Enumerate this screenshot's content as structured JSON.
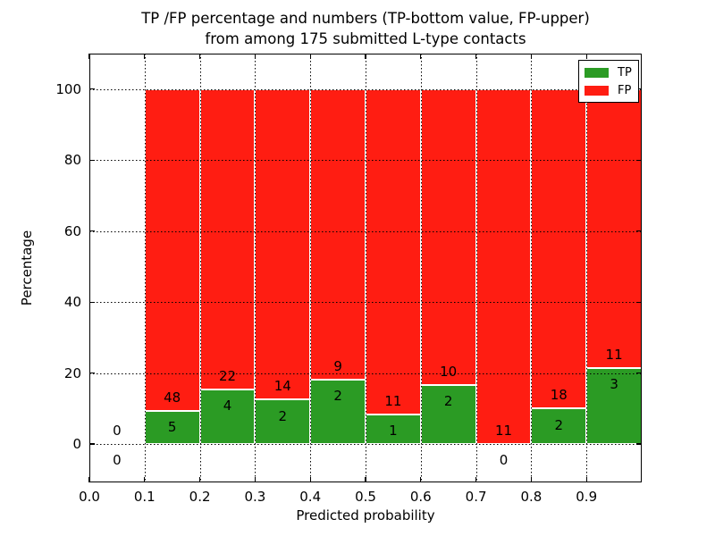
{
  "figure": {
    "title_line1": "TP /FP percentage and numbers (TP-bottom value, FP-upper)",
    "title_line2": "from among 175 submitted L-type contacts",
    "background": "#ffffff"
  },
  "colors": {
    "tp_green": "#2b9b24",
    "fp_red": "#ff1d12",
    "axis_text": "#000000",
    "bar_edge": "#ffffff",
    "frame": "#000000"
  },
  "chart_data": {
    "type": "bar",
    "stacked": true,
    "title": "TP /FP percentage and numbers (TP-bottom value, FP-upper) from among 175 submitted L-type contacts",
    "xlabel": "Predicted probability",
    "ylabel": "Percentage",
    "xlim": [
      0.0,
      1.0
    ],
    "ylim": [
      -10.8,
      110.0
    ],
    "grid": "dotted",
    "total_contacts": 175,
    "x_ticks": [
      "0.0",
      "0.1",
      "0.2",
      "0.3",
      "0.4",
      "0.5",
      "0.6",
      "0.7",
      "0.8",
      "0.9"
    ],
    "x_tick_values": [
      0.0,
      0.1,
      0.2,
      0.3,
      0.4,
      0.5,
      0.6,
      0.7,
      0.8,
      0.9
    ],
    "y_ticks": [
      "0",
      "20",
      "40",
      "60",
      "80",
      "100"
    ],
    "y_tick_values": [
      0,
      20,
      40,
      60,
      80,
      100
    ],
    "legend": {
      "position": "upper right",
      "entries": [
        {
          "label": "TP",
          "color": "#2b9b24"
        },
        {
          "label": "FP",
          "color": "#ff1d12"
        }
      ]
    },
    "series": [
      {
        "name": "TP",
        "color": "#2b9b24",
        "counts": [
          0,
          5,
          4,
          2,
          2,
          1,
          2,
          0,
          2,
          3
        ]
      },
      {
        "name": "FP",
        "color": "#ff1d12",
        "counts": [
          0,
          48,
          22,
          14,
          9,
          11,
          10,
          11,
          18,
          11
        ]
      }
    ],
    "bins": [
      {
        "range": [
          0.0,
          0.1
        ],
        "tp_count": 0,
        "fp_count": 0,
        "tp_pct": 0.0,
        "fp_pct": 0.0,
        "draw_bar": false
      },
      {
        "range": [
          0.1,
          0.2
        ],
        "tp_count": 5,
        "fp_count": 48,
        "tp_pct": 9.43,
        "fp_pct": 90.57,
        "draw_bar": true
      },
      {
        "range": [
          0.2,
          0.3
        ],
        "tp_count": 4,
        "fp_count": 22,
        "tp_pct": 15.38,
        "fp_pct": 84.62,
        "draw_bar": true
      },
      {
        "range": [
          0.3,
          0.4
        ],
        "tp_count": 2,
        "fp_count": 14,
        "tp_pct": 12.5,
        "fp_pct": 87.5,
        "draw_bar": true
      },
      {
        "range": [
          0.4,
          0.5
        ],
        "tp_count": 2,
        "fp_count": 9,
        "tp_pct": 18.18,
        "fp_pct": 81.82,
        "draw_bar": true
      },
      {
        "range": [
          0.5,
          0.6
        ],
        "tp_count": 1,
        "fp_count": 11,
        "tp_pct": 8.33,
        "fp_pct": 91.67,
        "draw_bar": true
      },
      {
        "range": [
          0.6,
          0.7
        ],
        "tp_count": 2,
        "fp_count": 10,
        "tp_pct": 16.67,
        "fp_pct": 83.33,
        "draw_bar": true
      },
      {
        "range": [
          0.7,
          0.8
        ],
        "tp_count": 0,
        "fp_count": 11,
        "tp_pct": 0.0,
        "fp_pct": 100.0,
        "draw_bar": true
      },
      {
        "range": [
          0.8,
          0.9
        ],
        "tp_count": 2,
        "fp_count": 18,
        "tp_pct": 10.0,
        "fp_pct": 90.0,
        "draw_bar": true
      },
      {
        "range": [
          0.9,
          1.0
        ],
        "tp_count": 3,
        "fp_count": 11,
        "tp_pct": 21.43,
        "fp_pct": 78.57,
        "draw_bar": true
      }
    ],
    "annotation_offsets_pct": {
      "fp_label": 3.8,
      "tp_label": -4.6
    }
  }
}
